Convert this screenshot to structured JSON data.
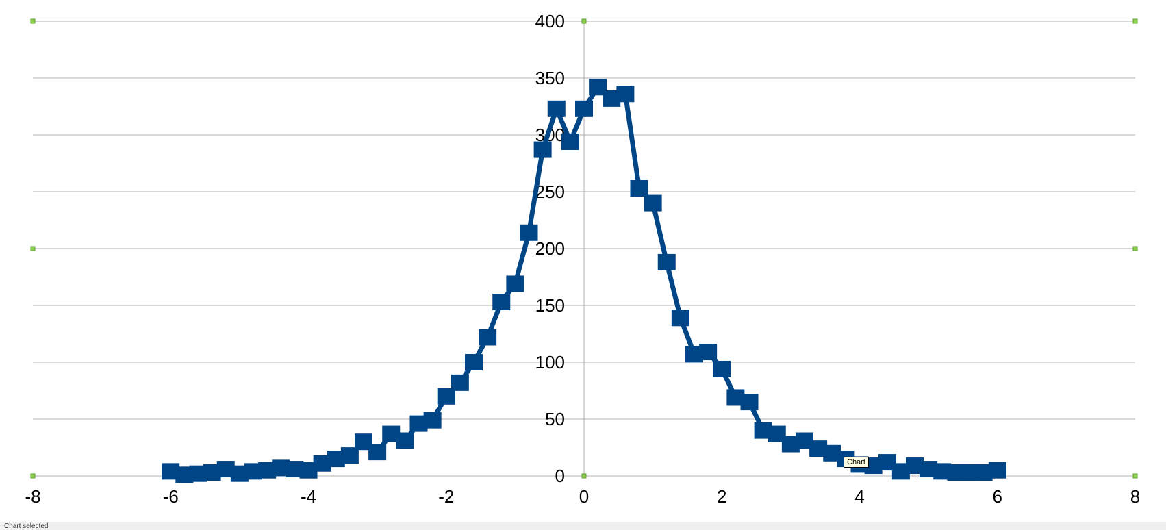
{
  "chart_data": {
    "type": "line",
    "title": "",
    "xlabel": "",
    "ylabel": "",
    "xlim": [
      -8,
      8
    ],
    "ylim": [
      0,
      400
    ],
    "x_ticks": [
      "-8",
      "-6",
      "-4",
      "-2",
      "0",
      "2",
      "4",
      "6",
      "8"
    ],
    "y_ticks": [
      "0",
      "50",
      "100",
      "150",
      "200",
      "250",
      "300",
      "350",
      "400"
    ],
    "grid": "horizontal",
    "marker": "square",
    "series": [
      {
        "color": "#004586",
        "x": [
          -6.0,
          -5.8,
          -5.6,
          -5.4,
          -5.2,
          -5.0,
          -4.8,
          -4.6,
          -4.4,
          -4.2,
          -4.0,
          -3.8,
          -3.6,
          -3.4,
          -3.2,
          -3.0,
          -2.8,
          -2.6,
          -2.4,
          -2.2,
          -2.0,
          -1.8,
          -1.6,
          -1.4,
          -1.2,
          -1.0,
          -0.8,
          -0.6,
          -0.4,
          -0.2,
          0.0,
          0.2,
          0.4,
          0.6,
          0.8,
          1.0,
          1.2,
          1.4,
          1.6,
          1.8,
          2.0,
          2.2,
          2.4,
          2.6,
          2.8,
          3.0,
          3.2,
          3.4,
          3.6,
          3.8,
          4.0,
          4.2,
          4.4,
          4.6,
          4.8,
          5.0,
          5.2,
          5.4,
          5.6,
          5.8,
          6.0
        ],
        "y": [
          4,
          1,
          2,
          3,
          6,
          2,
          4,
          5,
          7,
          6,
          5,
          11,
          15,
          18,
          30,
          21,
          37,
          31,
          46,
          49,
          70,
          82,
          100,
          122,
          153,
          169,
          214,
          287,
          323,
          294,
          323,
          342,
          332,
          336,
          253,
          240,
          188,
          139,
          107,
          109,
          94,
          69,
          65,
          40,
          37,
          28,
          31,
          24,
          20,
          15,
          10,
          9,
          12,
          4,
          9,
          6,
          4,
          3,
          3,
          3,
          5
        ]
      }
    ]
  },
  "tooltip": "Chart",
  "status_text": "Chart selected"
}
